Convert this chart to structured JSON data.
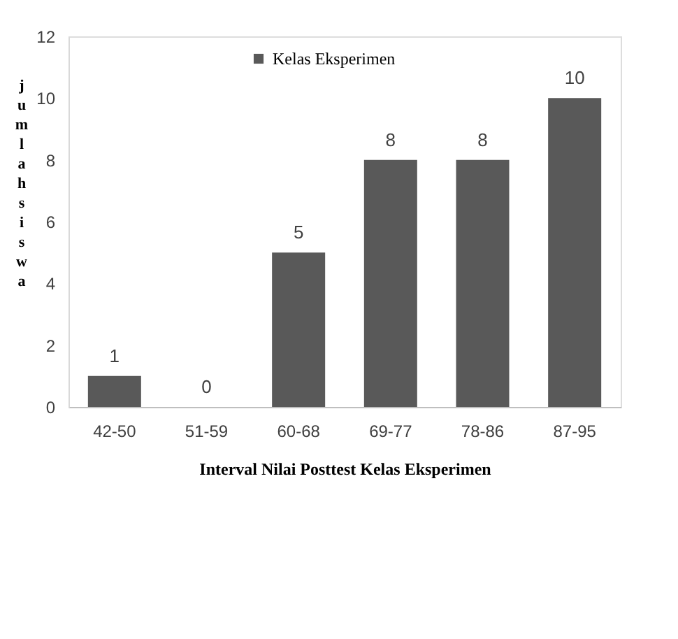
{
  "chart_data": {
    "type": "bar",
    "xlabel": "Interval Nilai Posttest  Kelas Eksperimen",
    "ylabel": "jumlah siswa",
    "categories": [
      "42-50",
      "51-59",
      "60-68",
      "69-77",
      "78-86",
      "87-95"
    ],
    "series": [
      {
        "name": "Kelas Eksperimen",
        "color": "#595959",
        "values": [
          1,
          0,
          5,
          8,
          8,
          10
        ]
      }
    ],
    "ylim": [
      0,
      12
    ],
    "yticks": [
      0,
      2,
      4,
      6,
      8,
      10,
      12
    ],
    "data_labels": true,
    "grid": false,
    "legend": "top"
  }
}
